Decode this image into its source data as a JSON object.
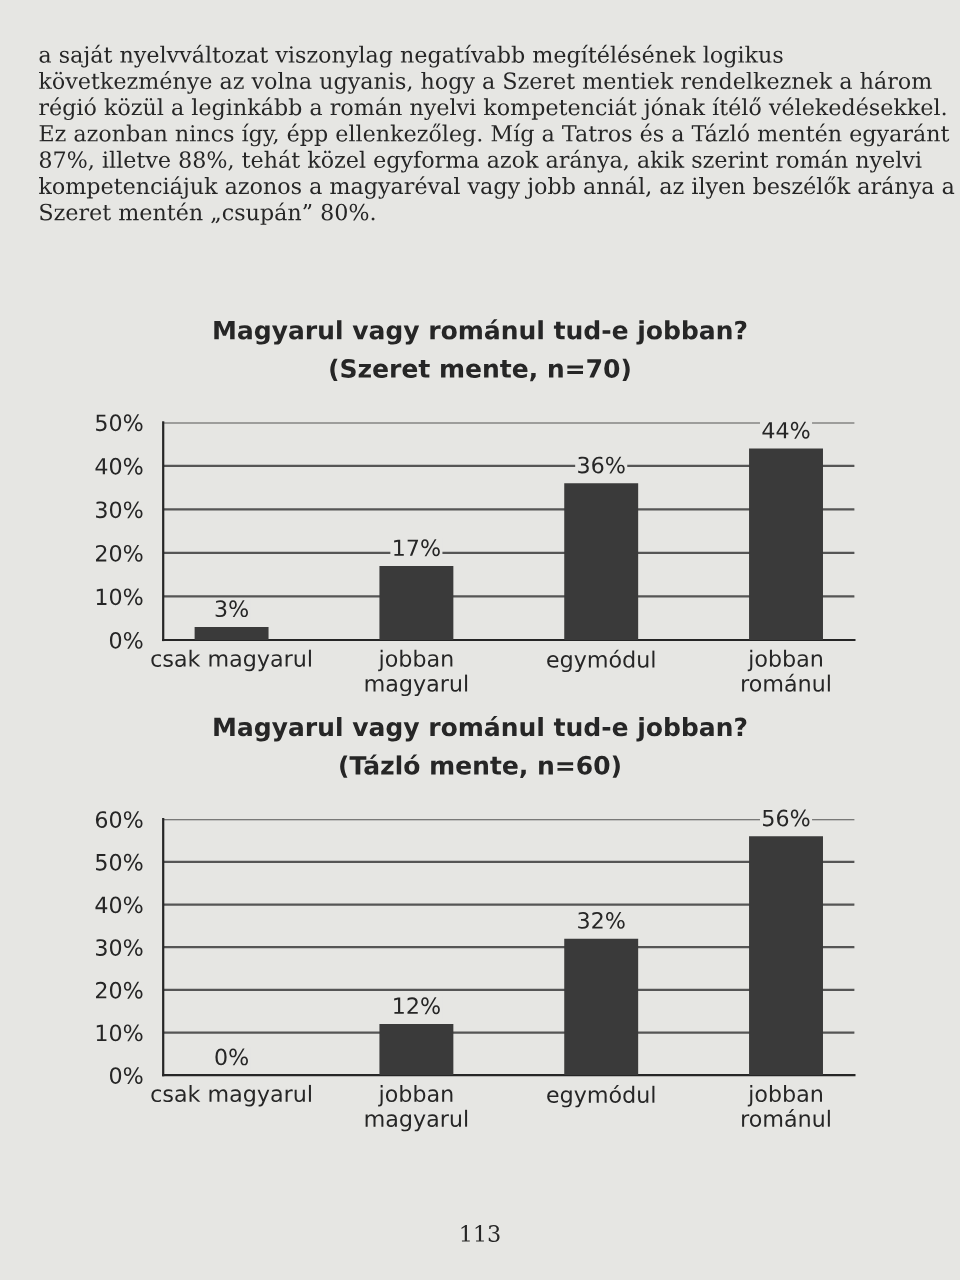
{
  "chart_data": [
    {
      "type": "bar",
      "title": "Magyarul vagy románul tud-e jobban?",
      "subtitle": "(Szeret mente, n=70)",
      "categories": [
        "csak magyarul",
        "jobban\nmagyarul",
        "egymódul",
        "jobban\nrománul"
      ],
      "values": [
        3,
        17,
        36,
        44
      ],
      "value_labels": [
        "3%",
        "17%",
        "36%",
        "44%"
      ],
      "color": "#3a3a3a",
      "ylim": [
        0,
        50
      ],
      "yticks": [
        {
          "value": 0,
          "label": "0%"
        },
        {
          "value": 10,
          "label": "10%"
        },
        {
          "value": 20,
          "label": "20%"
        },
        {
          "value": 30,
          "label": "30%"
        },
        {
          "value": 40,
          "label": "40%"
        },
        {
          "value": 50,
          "label": "50%"
        }
      ],
      "grid": "y",
      "annotations": [
        "a saját nyelvváltozat viszonylag negatívabb megítélésének logikus következménye az volna ugyanis, hogy a Szeret mentiek rendelkeznek a három régió közül a leginkább a román nyelvi kompetenciát jónak ítélő vélekedésekkel. Ez azonban nincs így, épp ellenkezőleg. Míg a Tatros és a Tázló mentén egyaránt 87%, illetve 88%, tehát közel egyforma azok aránya, akik szerint román nyelvi kompetenciájuk azonos a magyaréval vagy jobb annál, az ilyen beszélők aránya a Szeret mentén „csupán” 80%."
      ]
    },
    {
      "type": "bar",
      "title": "Magyarul vagy románul tud-e jobban?",
      "subtitle": "(Tázló mente, n=60)",
      "categories": [
        "csak magyarul",
        "jobban\nmagyarul",
        "egymódul",
        "jobban\nrománul"
      ],
      "values": [
        0,
        12,
        32,
        56
      ],
      "value_labels": [
        "0%",
        "12%",
        "32%",
        "56%"
      ],
      "color": "#3a3a3a",
      "ylim": [
        0,
        60
      ],
      "yticks": [
        {
          "value": 0,
          "label": "0%"
        },
        {
          "value": 10,
          "label": "10%"
        },
        {
          "value": 20,
          "label": "20%"
        },
        {
          "value": 30,
          "label": "30%"
        },
        {
          "value": 40,
          "label": "40%"
        },
        {
          "value": 50,
          "label": "50%"
        },
        {
          "value": 60,
          "label": "60%"
        }
      ],
      "grid": "y",
      "annotations": [
        "113"
      ]
    }
  ]
}
